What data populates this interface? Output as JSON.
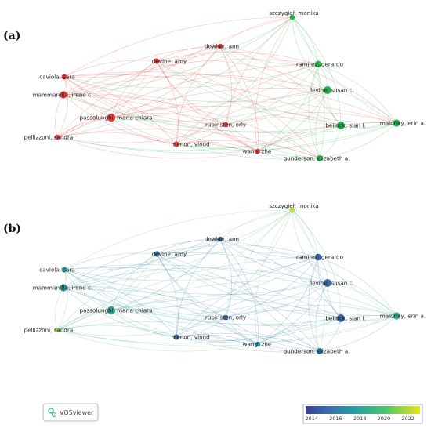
{
  "panels": [
    {
      "id": "a",
      "label": "(a)"
    },
    {
      "id": "b",
      "label": "(b)"
    }
  ],
  "nodes": [
    {
      "id": "szczygiel",
      "label": "szczygieł, monika",
      "cluster": "green",
      "year": 2022.2
    },
    {
      "id": "ramirez",
      "label": "ramirez, gerardo",
      "cluster": "green",
      "year": 2014.9
    },
    {
      "id": "levine",
      "label": "levine, susan c.",
      "cluster": "green",
      "year": 2015.3
    },
    {
      "id": "beilock",
      "label": "beilock, sian l.",
      "cluster": "green",
      "year": 2015.1
    },
    {
      "id": "maloney",
      "label": "maloney, erin a.",
      "cluster": "green",
      "year": 2018.6
    },
    {
      "id": "gunderson",
      "label": "gunderson, elizabeth a.",
      "cluster": "green",
      "year": 2016.1
    },
    {
      "id": "dowker",
      "label": "dowker, ann",
      "cluster": "red",
      "year": 2014.8
    },
    {
      "id": "devine",
      "label": "devine, amy",
      "cluster": "red",
      "year": 2015.5
    },
    {
      "id": "caviola",
      "label": "caviola, sara",
      "cluster": "red",
      "year": 2017.8
    },
    {
      "id": "mammarella",
      "label": "mammarella, irene c.",
      "cluster": "red",
      "year": 2017.2
    },
    {
      "id": "passolunghi",
      "label": "passolunghi, maria chiara",
      "cluster": "red",
      "year": 2018.2
    },
    {
      "id": "pellizzoni",
      "label": "pellizzoni, sandra",
      "cluster": "red",
      "year": 2021.3
    },
    {
      "id": "rubinsten",
      "label": "rubinsten, orly",
      "cluster": "red",
      "year": 2015.6
    },
    {
      "id": "menon",
      "label": "menon, vinod",
      "cluster": "red",
      "year": 2014.8
    },
    {
      "id": "wang",
      "label": "wang, zhe",
      "cluster": "red",
      "year": 2016.8
    }
  ],
  "colors": {
    "red": "#e83c3c",
    "green": "#22b24c"
  },
  "legend": {
    "ticks": [
      "2014",
      "2016",
      "2018",
      "2020",
      "2022"
    ],
    "min": 2013.5,
    "max": 2023
  }
}
